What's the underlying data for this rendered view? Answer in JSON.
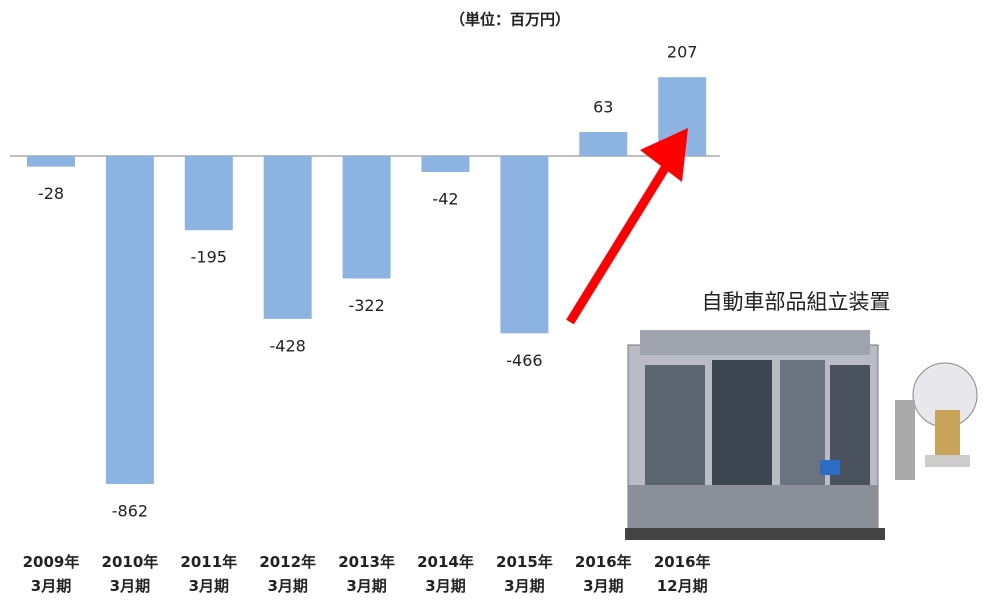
{
  "chart_data": {
    "type": "bar",
    "subtitle": "（単位：百万円）",
    "annotation": "自動車部品組立装置",
    "categories": [
      "2009年\n3月期",
      "2010年\n3月期",
      "2011年\n3月期",
      "2012年\n3月期",
      "2013年\n3月期",
      "2014年\n3月期",
      "2015年\n3月期",
      "2016年\n3月期",
      "2016年\n12月期"
    ],
    "values": [
      -28,
      -862,
      -195,
      -428,
      -322,
      -42,
      -466,
      63,
      207
    ],
    "color": "#8db3e2"
  }
}
